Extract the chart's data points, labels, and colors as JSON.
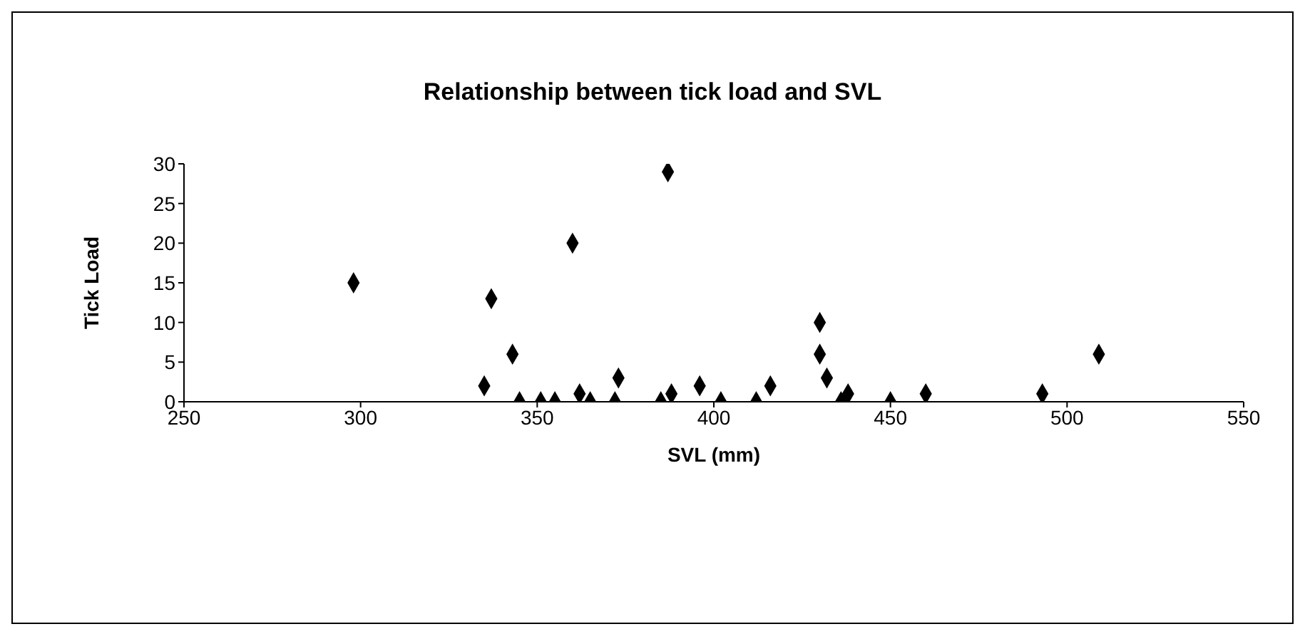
{
  "chart_data": {
    "type": "scatter",
    "title": "Relationship between tick load and SVL",
    "xlabel": "SVL (mm)",
    "ylabel": "Tick Load",
    "x": [
      298,
      335,
      337,
      343,
      345,
      351,
      355,
      360,
      362,
      365,
      372,
      373,
      385,
      387,
      388,
      396,
      402,
      412,
      416,
      430,
      430,
      432,
      436,
      438,
      450,
      460,
      493,
      509
    ],
    "values": [
      15,
      2,
      13,
      6,
      0,
      0,
      0,
      20,
      1,
      0,
      0,
      3,
      0,
      29,
      1,
      2,
      0,
      0,
      2,
      10,
      6,
      3,
      0,
      1,
      0,
      1,
      1,
      6
    ],
    "color": "#000000",
    "marker": "diamond",
    "xlim": [
      250,
      550
    ],
    "xticks": [
      250,
      300,
      350,
      400,
      450,
      500,
      550
    ],
    "ylim": [
      0,
      30
    ],
    "yticks": [
      0,
      5,
      10,
      15,
      20,
      25,
      30
    ],
    "grid": false,
    "legend": false
  }
}
